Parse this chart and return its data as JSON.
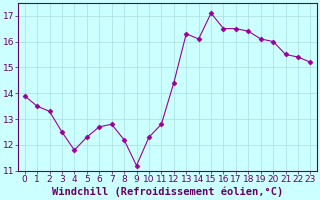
{
  "x": [
    0,
    1,
    2,
    3,
    4,
    5,
    6,
    7,
    8,
    9,
    10,
    11,
    12,
    13,
    14,
    15,
    16,
    17,
    18,
    19,
    20,
    21,
    22,
    23
  ],
  "y": [
    13.9,
    13.5,
    13.3,
    12.5,
    11.8,
    12.3,
    12.7,
    12.8,
    12.2,
    11.2,
    12.3,
    12.8,
    14.4,
    16.3,
    16.1,
    17.1,
    16.5,
    16.5,
    16.4,
    16.1,
    16.0,
    15.5,
    15.4,
    15.2
  ],
  "line_color": "#990099",
  "marker": "D",
  "marker_size": 2.5,
  "background_color": "#ccffff",
  "grid_color": "#aadddd",
  "xlabel": "Windchill (Refroidissement éolien,°C)",
  "xlabel_color": "#660066",
  "xlabel_fontsize": 7.5,
  "ylim": [
    11,
    17.5
  ],
  "xlim": [
    -0.5,
    23.5
  ],
  "yticks": [
    11,
    12,
    13,
    14,
    15,
    16,
    17
  ],
  "xticks": [
    0,
    1,
    2,
    3,
    4,
    5,
    6,
    7,
    8,
    9,
    10,
    11,
    12,
    13,
    14,
    15,
    16,
    17,
    18,
    19,
    20,
    21,
    22,
    23
  ],
  "tick_label_fontsize": 6.5,
  "tick_color": "#660066",
  "spine_color": "#660066"
}
